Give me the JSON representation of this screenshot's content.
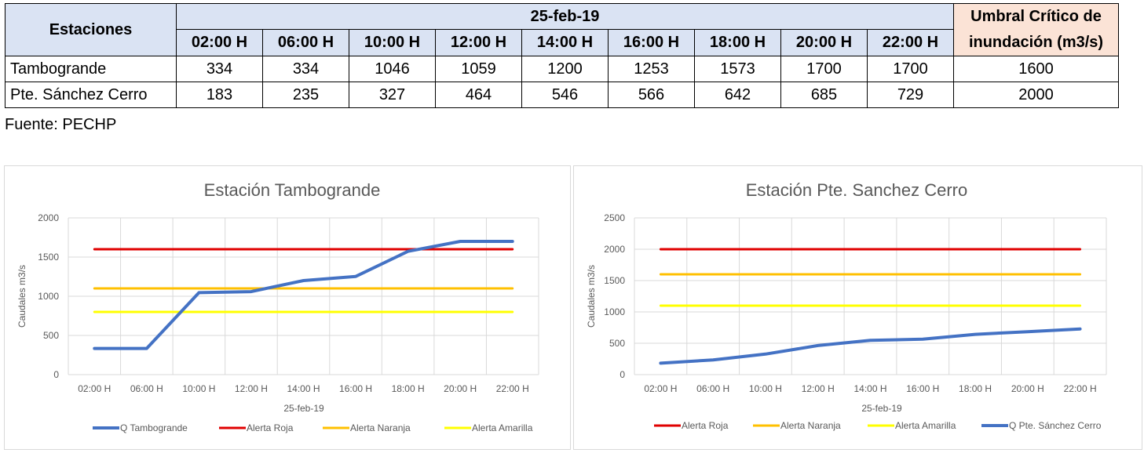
{
  "table": {
    "header_station": "Estaciones",
    "header_date": "25-feb-19",
    "header_threshold": "Umbral Crítico de inundación (m3/s)",
    "times": [
      "02:00 H",
      "06:00 H",
      "10:00 H",
      "12:00 H",
      "14:00 H",
      "16:00 H",
      "18:00 H",
      "20:00 H",
      "22:00 H"
    ],
    "rows": [
      {
        "station": "Tambogrande",
        "values": [
          "334",
          "334",
          "1046",
          "1059",
          "1200",
          "1253",
          "1573",
          "1700",
          "1700"
        ],
        "threshold": "1600"
      },
      {
        "station": "Pte. Sánchez Cerro",
        "values": [
          "183",
          "235",
          "327",
          "464",
          "546",
          "566",
          "642",
          "685",
          "729"
        ],
        "threshold": "2000"
      }
    ],
    "colors": {
      "header_bg": "#dae3f3",
      "threshold_bg": "#fbe3d6"
    }
  },
  "source": "Fuente: PECHP",
  "chart_data": [
    {
      "type": "line",
      "title": "Estación Tambogrande",
      "xlabel": "25-feb-19",
      "ylabel": "Caudales m3/s",
      "categories": [
        "02:00 H",
        "06:00 H",
        "10:00 H",
        "12:00 H",
        "14:00 H",
        "16:00 H",
        "18:00 H",
        "20:00 H",
        "22:00 H"
      ],
      "ylim": [
        0,
        2000
      ],
      "yticks": [
        0,
        500,
        1000,
        1500,
        2000
      ],
      "grid": true,
      "legend": "bottom",
      "series": [
        {
          "name": "Q Tambogrande",
          "color": "#4472c4",
          "values": [
            334,
            334,
            1046,
            1059,
            1200,
            1253,
            1573,
            1700,
            1700
          ]
        },
        {
          "name": "Alerta Roja",
          "color": "#e00000",
          "values": [
            1600,
            1600,
            1600,
            1600,
            1600,
            1600,
            1600,
            1600,
            1600
          ]
        },
        {
          "name": "Alerta Naranja",
          "color": "#ffc000",
          "values": [
            1100,
            1100,
            1100,
            1100,
            1100,
            1100,
            1100,
            1100,
            1100
          ]
        },
        {
          "name": "Alerta Amarilla",
          "color": "#ffff00",
          "values": [
            800,
            800,
            800,
            800,
            800,
            800,
            800,
            800,
            800
          ]
        }
      ]
    },
    {
      "type": "line",
      "title": "Estación Pte. Sanchez Cerro",
      "xlabel": "25-feb-19",
      "ylabel": "Caudales m3/s",
      "categories": [
        "02:00 H",
        "06:00 H",
        "10:00 H",
        "12:00 H",
        "14:00 H",
        "16:00 H",
        "18:00 H",
        "20:00 H",
        "22:00 H"
      ],
      "ylim": [
        0,
        2500
      ],
      "yticks": [
        0,
        500,
        1000,
        1500,
        2000,
        2500
      ],
      "grid": true,
      "legend": "bottom",
      "series": [
        {
          "name": "Alerta Roja",
          "color": "#e00000",
          "values": [
            2000,
            2000,
            2000,
            2000,
            2000,
            2000,
            2000,
            2000,
            2000
          ]
        },
        {
          "name": "Alerta Naranja",
          "color": "#ffc000",
          "values": [
            1600,
            1600,
            1600,
            1600,
            1600,
            1600,
            1600,
            1600,
            1600
          ]
        },
        {
          "name": "Alerta Amarilla",
          "color": "#ffff00",
          "values": [
            1100,
            1100,
            1100,
            1100,
            1100,
            1100,
            1100,
            1100,
            1100
          ]
        },
        {
          "name": "Q Pte. Sánchez Cerro",
          "color": "#4472c4",
          "values": [
            183,
            235,
            327,
            464,
            546,
            566,
            642,
            685,
            729
          ]
        }
      ]
    }
  ]
}
